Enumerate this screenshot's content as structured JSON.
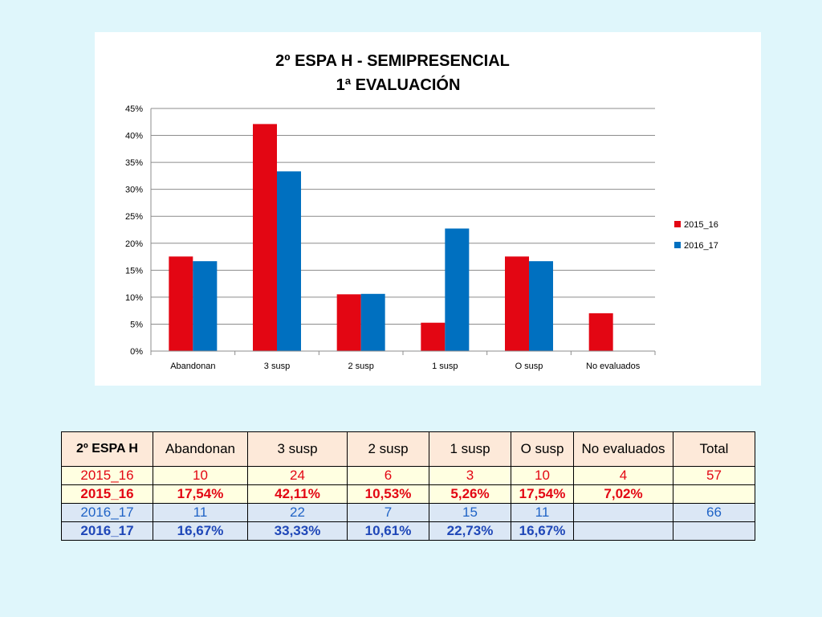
{
  "chart_data": {
    "type": "bar",
    "title": "2º ESPA H - SEMIPRESENCIAL",
    "subtitle": "1ª EVALUACIÓN",
    "categories": [
      "Abandonan",
      "3 susp",
      "2 susp",
      "1 susp",
      "O susp",
      "No evaluados"
    ],
    "series": [
      {
        "name": "2015_16",
        "values": [
          17.54,
          42.11,
          10.53,
          5.26,
          17.54,
          7.02
        ],
        "color": "#e30613"
      },
      {
        "name": "2016_17",
        "values": [
          16.67,
          33.33,
          10.61,
          22.73,
          16.67,
          null
        ],
        "color": "#0070c0"
      }
    ],
    "ylim": [
      0,
      45
    ],
    "yticks": [
      "0%",
      "5%",
      "10%",
      "15%",
      "20%",
      "25%",
      "30%",
      "35%",
      "40%",
      "45%"
    ],
    "ytick_values": [
      0,
      5,
      10,
      15,
      20,
      25,
      30,
      35,
      40,
      45
    ],
    "grid": true,
    "legend_position": "right",
    "xlabel": "",
    "ylabel": ""
  },
  "table": {
    "header": [
      "2º ESPA H",
      "Abandonan",
      "3 susp",
      "2 susp",
      "1 susp",
      "O susp",
      "No evaluados",
      "Total"
    ],
    "rows": [
      [
        "2015_16",
        "10",
        "24",
        "6",
        "3",
        "10",
        "4",
        "57"
      ],
      [
        "2015_16",
        "17,54%",
        "42,11%",
        "10,53%",
        "5,26%",
        "17,54%",
        "7,02%",
        ""
      ],
      [
        "2016_17",
        "11",
        "22",
        "7",
        "15",
        "11",
        "",
        "66"
      ],
      [
        "2016_17",
        "16,67%",
        "33,33%",
        "10,61%",
        "22,73%",
        "16,67%",
        "",
        ""
      ]
    ]
  }
}
